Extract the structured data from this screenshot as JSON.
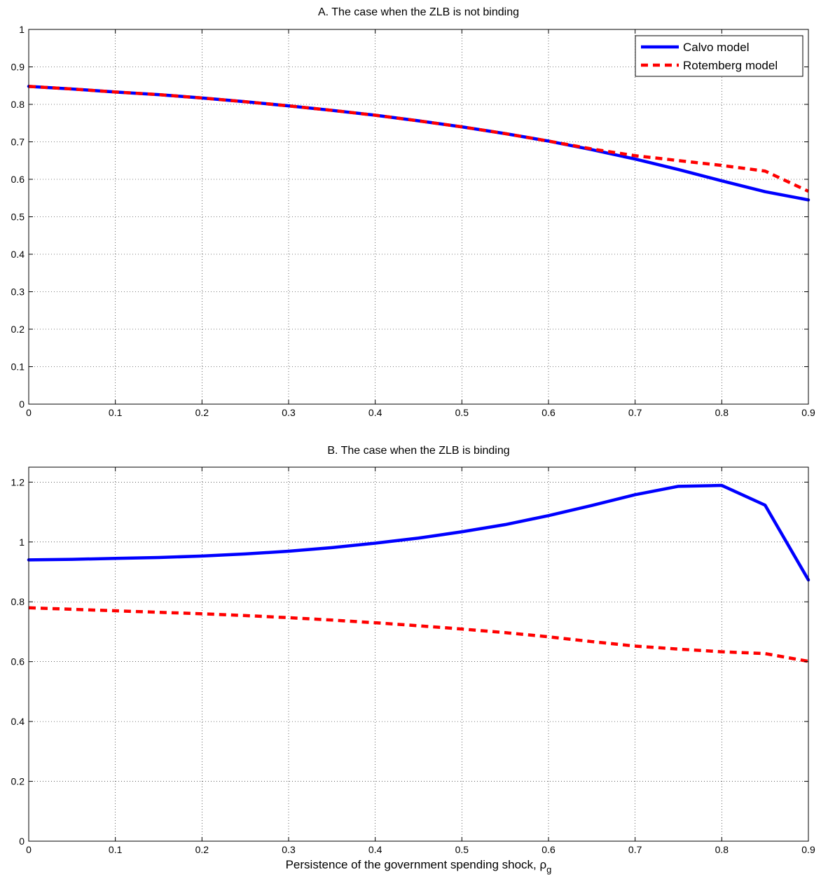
{
  "chart_data": [
    {
      "type": "line",
      "title": "A. The case when the ZLB is not binding",
      "xlabel": "",
      "ylabel": "",
      "xlim": [
        0,
        0.9
      ],
      "ylim": [
        0,
        1
      ],
      "xticks": [
        "0",
        "0.1",
        "0.2",
        "0.3",
        "0.4",
        "0.5",
        "0.6",
        "0.7",
        "0.8",
        "0.9"
      ],
      "yticks": [
        "0",
        "0.1",
        "0.2",
        "0.3",
        "0.4",
        "0.5",
        "0.6",
        "0.7",
        "0.8",
        "0.9",
        "1"
      ],
      "grid": true,
      "legend_position": "top-right",
      "x": [
        0,
        0.05,
        0.1,
        0.15,
        0.2,
        0.25,
        0.3,
        0.35,
        0.4,
        0.45,
        0.5,
        0.55,
        0.6,
        0.65,
        0.7,
        0.75,
        0.8,
        0.85,
        0.9
      ],
      "series": [
        {
          "name": "Calvo model",
          "color": "#0000ff",
          "style": "solid",
          "values": [
            0.848,
            0.841,
            0.833,
            0.826,
            0.817,
            0.807,
            0.796,
            0.784,
            0.771,
            0.756,
            0.74,
            0.722,
            0.702,
            0.679,
            0.654,
            0.626,
            0.596,
            0.567,
            0.545
          ]
        },
        {
          "name": "Rotemberg model",
          "color": "#ff0000",
          "style": "dashed",
          "values": [
            0.848,
            0.841,
            0.833,
            0.826,
            0.817,
            0.807,
            0.796,
            0.784,
            0.771,
            0.756,
            0.74,
            0.722,
            0.702,
            0.681,
            0.663,
            0.65,
            0.637,
            0.622,
            0.568
          ]
        }
      ]
    },
    {
      "type": "line",
      "title": "B. The case when the ZLB is binding",
      "xlabel": "Persistence of the government spending shock, ",
      "xlabel_symbol": "ρ",
      "xlabel_subscript": "g",
      "ylabel": "",
      "xlim": [
        0,
        0.9
      ],
      "ylim": [
        0,
        1.25
      ],
      "xticks": [
        "0",
        "0.1",
        "0.2",
        "0.3",
        "0.4",
        "0.5",
        "0.6",
        "0.7",
        "0.8",
        "0.9"
      ],
      "yticks": [
        "0",
        "0.2",
        "0.4",
        "0.6",
        "0.8",
        "1",
        "1.2"
      ],
      "grid": true,
      "x": [
        0,
        0.05,
        0.1,
        0.15,
        0.2,
        0.25,
        0.3,
        0.35,
        0.4,
        0.45,
        0.5,
        0.55,
        0.6,
        0.65,
        0.7,
        0.75,
        0.8,
        0.85,
        0.9
      ],
      "series": [
        {
          "name": "Calvo model",
          "color": "#0000ff",
          "style": "solid",
          "values": [
            0.94,
            0.942,
            0.945,
            0.948,
            0.953,
            0.96,
            0.969,
            0.981,
            0.996,
            1.013,
            1.034,
            1.058,
            1.088,
            1.122,
            1.158,
            1.186,
            1.189,
            1.123,
            0.873
          ]
        },
        {
          "name": "Rotemberg model",
          "color": "#ff0000",
          "style": "dashed",
          "values": [
            0.78,
            0.775,
            0.77,
            0.765,
            0.76,
            0.754,
            0.747,
            0.739,
            0.73,
            0.72,
            0.709,
            0.697,
            0.683,
            0.667,
            0.652,
            0.642,
            0.633,
            0.627,
            0.601
          ]
        }
      ]
    }
  ]
}
